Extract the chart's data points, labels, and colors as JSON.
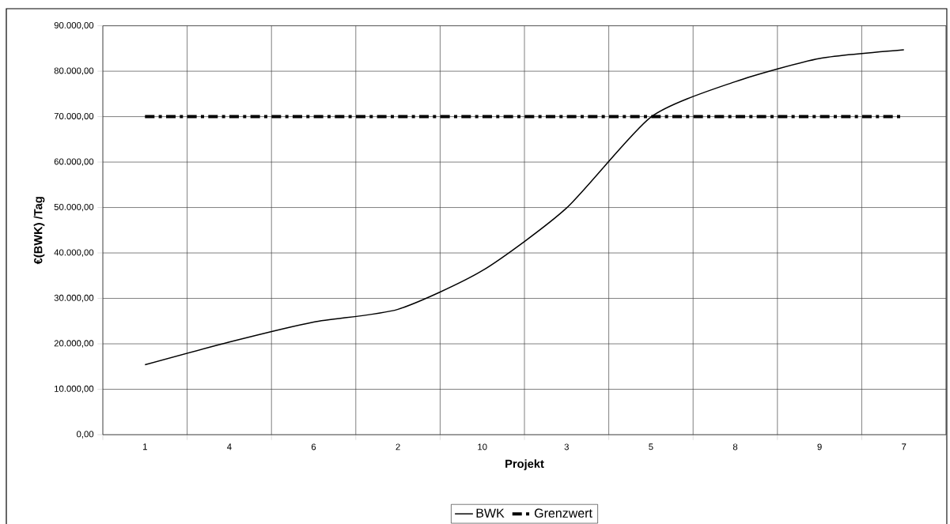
{
  "chart_data": {
    "type": "line",
    "xlabel": "Projekt",
    "ylabel": "€(BWK) /Tag",
    "categories": [
      "1",
      "4",
      "6",
      "2",
      "10",
      "3",
      "5",
      "8",
      "9",
      "7"
    ],
    "series": [
      {
        "name": "BWK",
        "color": "#000000",
        "line_style": "solid",
        "values": [
          15400,
          20400,
          24800,
          27600,
          36100,
          49900,
          69900,
          77700,
          82800,
          84700
        ]
      },
      {
        "name": "Grenzwert",
        "color": "#000000",
        "line_style": "dashed",
        "values": [
          70000,
          70000,
          70000,
          70000,
          70000,
          70000,
          70000,
          70000,
          70000,
          70000
        ]
      }
    ],
    "ylim": [
      0,
      90000
    ],
    "yticks": [
      {
        "value": 0,
        "label": "0,00"
      },
      {
        "value": 10000,
        "label": "10.000,00"
      },
      {
        "value": 20000,
        "label": "20.000,00"
      },
      {
        "value": 30000,
        "label": "30.000,00"
      },
      {
        "value": 40000,
        "label": "40.000,00"
      },
      {
        "value": 50000,
        "label": "50.000,00"
      },
      {
        "value": 60000,
        "label": "60.000,00"
      },
      {
        "value": 70000,
        "label": "70.000,00"
      },
      {
        "value": 80000,
        "label": "80.000,00"
      },
      {
        "value": 90000,
        "label": "90.000,00"
      }
    ],
    "grid": true,
    "legend": "bottom",
    "marker": "none"
  }
}
